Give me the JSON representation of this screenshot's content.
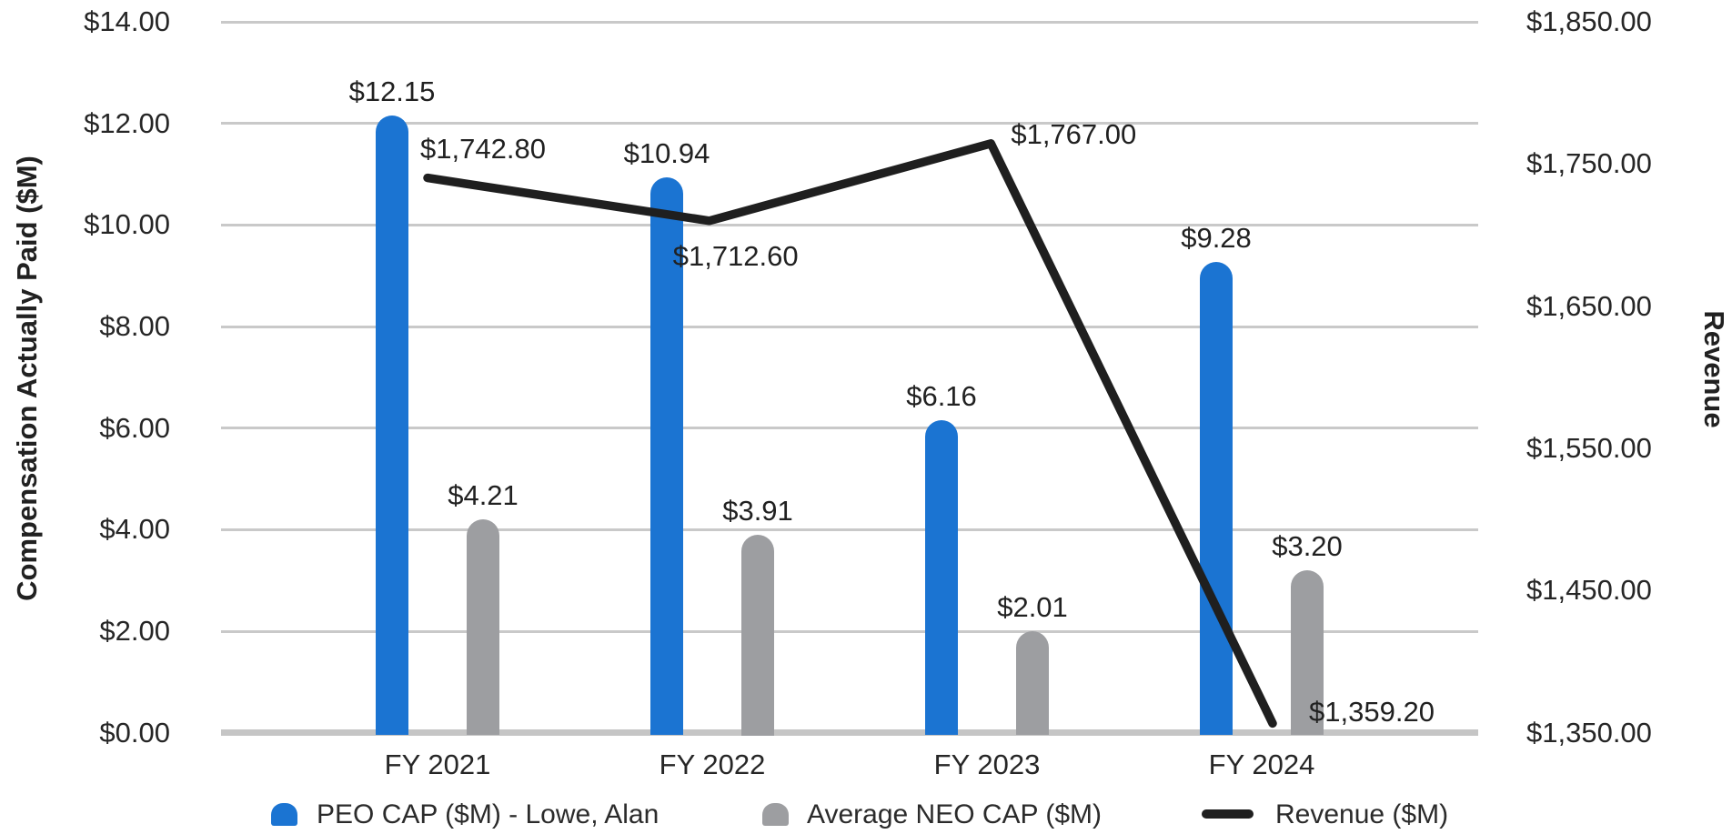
{
  "chart_data": {
    "type": "bar",
    "subtype": "grouped-bar-with-line-combo",
    "categories": [
      "FY 2021",
      "FY 2022",
      "FY 2023",
      "FY 2024"
    ],
    "series": [
      {
        "name": "PEO CAP ($M) - Lowe, Alan",
        "type": "bar",
        "axis": "left",
        "color": "#1b74d2",
        "values": [
          12.15,
          10.94,
          6.16,
          9.28
        ],
        "labels": [
          "$12.15",
          "$10.94",
          "$6.16",
          "$9.28"
        ]
      },
      {
        "name": "Average NEO CAP ($M)",
        "type": "bar",
        "axis": "left",
        "color": "#9d9ea1",
        "values": [
          4.21,
          3.91,
          2.01,
          3.2
        ],
        "labels": [
          "$4.21",
          "$3.91",
          "$2.01",
          "$3.20"
        ]
      },
      {
        "name": "Revenue ($M)",
        "type": "line",
        "axis": "right",
        "color": "#1f1f1f",
        "values": [
          1742.8,
          1712.6,
          1767.0,
          1359.2
        ],
        "labels": [
          "$1,742.80",
          "$1,712.60",
          "$1,767.00",
          "$1,359.20"
        ]
      }
    ],
    "left_axis": {
      "title": "Compensation Actually Paid ($M)",
      "min": 0,
      "max": 14,
      "tick_step": 2,
      "ticks_top_to_bottom": [
        "$14.00",
        "$12.00",
        "$10.00",
        "$8.00",
        "$6.00",
        "$4.00",
        "$2.00",
        "$0.00"
      ]
    },
    "right_axis": {
      "title": "Revenue",
      "min": 1350,
      "max": 1850,
      "tick_step": 100,
      "ticks_top_to_bottom": [
        "$1,850.00",
        "$1,750.00",
        "$1,650.00",
        "$1,550.00",
        "$1,450.00",
        "$1,350.00"
      ]
    },
    "grid": true,
    "legend_position": "bottom",
    "legend": [
      {
        "label": "PEO CAP ($M) - Lowe, Alan",
        "swatch": "rounded-bar",
        "color": "#1b74d2"
      },
      {
        "label": "Average NEO CAP ($M)",
        "swatch": "rounded-bar",
        "color": "#9d9ea1"
      },
      {
        "label": "Revenue ($M)",
        "swatch": "line-dash",
        "color": "#1f1f1f"
      }
    ]
  },
  "colors": {
    "background": "#ffffff",
    "gridline": "#c9c9c9",
    "axis_baseline": "#c5c5c5",
    "text": "#262626",
    "peo_bar": "#1b74d2",
    "neo_bar": "#9d9ea1",
    "revenue_line": "#1f1f1f"
  }
}
